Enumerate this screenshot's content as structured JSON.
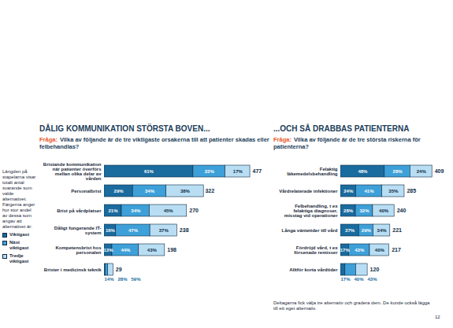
{
  "chart_data": [
    {
      "type": "bar",
      "orientation": "horizontal",
      "stacked": true,
      "data_labels": true,
      "tick_labels": false,
      "legend": "left",
      "title": "DÅLIG KOMMUNIKATION STÖRSTA BOVEN...",
      "subtitle_lead": "Fråga:",
      "subtitle": "Vilka av följande är de tre viktigaste orsakerna till att patienter skadas eller felbehandlas?",
      "categories": [
        "Bristande kommunikation när patienter överförs mellan olika delar av vården",
        "Personalbrist",
        "Brist på vårdplatser",
        "Dåligt fungerande IT-system",
        "Kompetensbrist hos personalen",
        "Brister i medicinsk teknik"
      ],
      "totals": [
        477,
        322,
        270,
        238,
        198,
        29
      ],
      "xlim": [
        0,
        500
      ],
      "series": [
        {
          "name": "Viktigast",
          "color": "#1a6b9e",
          "values": [
            61,
            29,
            21,
            16,
            13,
            14
          ],
          "value_labels": [
            "61%",
            "29%",
            "21%",
            "16%",
            "13%",
            "14%"
          ]
        },
        {
          "name": "Näst viktigast",
          "color": "#3ea0d8",
          "values": [
            22,
            34,
            34,
            47,
            44,
            28
          ],
          "value_labels": [
            "22%",
            "34%",
            "34%",
            "47%",
            "44%",
            "28%"
          ]
        },
        {
          "name": "Tredje viktigast",
          "color": "#b9def3",
          "values": [
            17,
            38,
            45,
            37,
            43,
            59
          ],
          "value_labels": [
            "17%",
            "38%",
            "45%",
            "37%",
            "43%",
            "59%"
          ]
        }
      ]
    },
    {
      "type": "bar",
      "orientation": "horizontal",
      "stacked": true,
      "data_labels": true,
      "tick_labels": false,
      "title": "...OCH SÅ DRABBAS PATIENTERNA",
      "subtitle_lead": "Fråga:",
      "subtitle": "Vilka av följande är de tre största riskerna för patienterna?",
      "categories": [
        "Felaktig läkemedelsbehandling",
        "Vårdrelaterade infektioner",
        "Felbehandling, t ex felaktiga diagnoser, misstag vid operationer",
        "Långa väntetider till vård",
        "Fördröjd vård, t ex försenade remisser",
        "Alltför korta vårdtider"
      ],
      "totals": [
        409,
        285,
        240,
        221,
        217,
        120
      ],
      "xlim": [
        0,
        440
      ],
      "series": [
        {
          "name": "Viktigast",
          "color": "#1a6b9e",
          "values": [
            48,
            24,
            28,
            37,
            17,
            17
          ],
          "value_labels": [
            "48%",
            "24%",
            "28%",
            "37%",
            "17%",
            "17%"
          ]
        },
        {
          "name": "Näst viktigast",
          "color": "#3ea0d8",
          "values": [
            28,
            41,
            32,
            29,
            43,
            40
          ],
          "value_labels": [
            "28%",
            "41%",
            "32%",
            "29%",
            "43%",
            "40%"
          ]
        },
        {
          "name": "Tredje viktigast",
          "color": "#b9def3",
          "values": [
            24,
            35,
            40,
            34,
            40,
            43
          ],
          "value_labels": [
            "24%",
            "35%",
            "40%",
            "34%",
            "40%",
            "43%"
          ]
        }
      ]
    }
  ],
  "legend_note": "Längden på stapelarna visar totalt antal svarande som valde alternativet. Färgerna anger hur stor andel av dessa som angav att alternativet är:",
  "footnote": "Deltagarna fick välja tre alternativ och gradera dem. De kunde också lägga till ett eget alternativ.",
  "page_number": "12"
}
